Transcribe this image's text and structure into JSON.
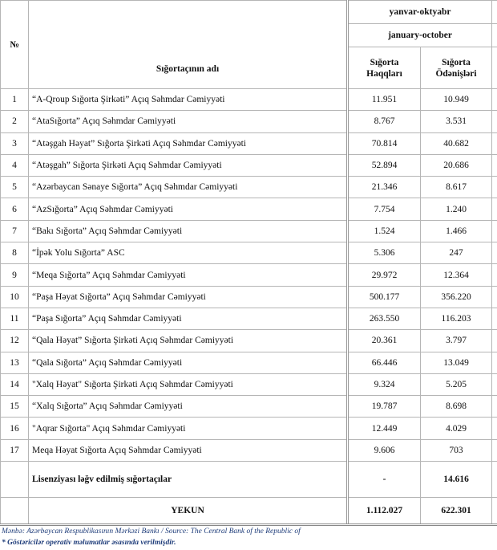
{
  "header": {
    "number": "№",
    "name": "Sığortaçının adı",
    "period_az": "yanvar-oktyabr",
    "period_en": "january-october",
    "col_premiums": "Sığorta Haqqları",
    "col_payments": "Sığorta Ödənişləri"
  },
  "table": {
    "rows": [
      [
        "1",
        "“A-Qroup Sığorta Şirkəti” Açıq Səhmdar Cəmiyyəti",
        "11.951",
        "10.949"
      ],
      [
        "2",
        "“AtaSığorta” Açıq Səhmdar Cəmiyyəti",
        "8.767",
        "3.531"
      ],
      [
        "3",
        "“Atəşgah Həyat” Sığorta Şirkəti Açıq Səhmdar Cəmiyyəti",
        "70.814",
        "40.682"
      ],
      [
        "4",
        "“Atəşgah” Sığorta Şirkəti Açıq Səhmdar Cəmiyyəti",
        "52.894",
        "20.686"
      ],
      [
        "5",
        "“Azərbaycan Sənaye Sığorta” Açıq Səhmdar Cəmiyyəti",
        "21.346",
        "8.617"
      ],
      [
        "6",
        "“AzSığorta” Açıq Səhmdar Cəmiyyəti",
        "7.754",
        "1.240"
      ],
      [
        "7",
        "“Bakı Sığorta” Açıq Səhmdar Cəmiyyəti",
        "1.524",
        "1.466"
      ],
      [
        "8",
        "“İpək Yolu Sığorta” ASC",
        "5.306",
        "247"
      ],
      [
        "9",
        "“Meqa Sığorta” Açıq Səhmdar Cəmiyyəti",
        "29.972",
        "12.364"
      ],
      [
        "10",
        "“Paşa Həyat Sığorta” Açıq Səhmdar Cəmiyyəti",
        "500.177",
        "356.220"
      ],
      [
        "11",
        "“Paşa Sığorta” Açıq Səhmdar Cəmiyyəti",
        "263.550",
        "116.203"
      ],
      [
        "12",
        "“Qala Həyat” Sığorta Şirkəti Açıq Səhmdar Cəmiyyəti",
        "20.361",
        "3.797"
      ],
      [
        "13",
        "“Qala Sığorta” Açıq Səhmdar Cəmiyyəti",
        "66.446",
        "13.049"
      ],
      [
        "14",
        "\"Xalq Həyat\" Sığorta Şirkəti Açıq Səhmdar Cəmiyyəti",
        "9.324",
        "5.205"
      ],
      [
        "15",
        "“Xalq Sığorta” Açıq Səhmdar Cəmiyyəti",
        "19.787",
        "8.698"
      ],
      [
        "16",
        "\"Aqrar Sığorta\" Açıq Səhmdar Cəmiyyəti",
        "12.449",
        "4.029"
      ],
      [
        "17",
        "Meqa Həyat Sığorta Açıq Səhmdar Cəmiyyəti",
        "9.606",
        "703"
      ]
    ],
    "revoked": {
      "label": "Lisenziyası ləğv edilmiş sığortaçılar",
      "premiums": "-",
      "payments": "14.616"
    },
    "total": {
      "label": "YEKUN",
      "premiums": "1.112.027",
      "payments": "622.301"
    }
  },
  "footer": {
    "source": "Mənbə: Azərbaycan Respublikasının Mərkəzi Bankı / Source: The Central Bank of the Republic of",
    "note": "* Göstəricilər operativ məlumatlar əsasında verilmişdir."
  }
}
